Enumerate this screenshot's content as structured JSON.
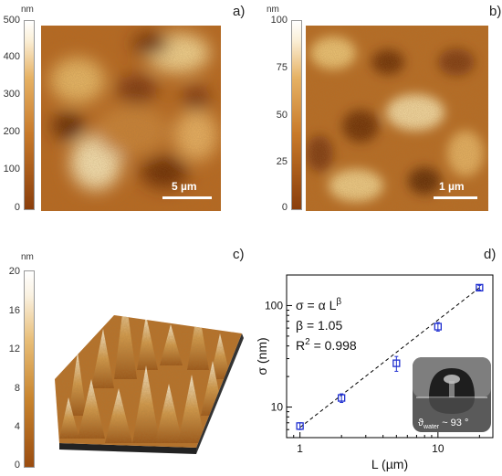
{
  "panel_a": {
    "label": "a)",
    "unit": "nm",
    "colorbar_ticks": [
      "500",
      "400",
      "300",
      "200",
      "100",
      "0"
    ],
    "scale_label": "5 µm"
  },
  "panel_b": {
    "label": "b)",
    "unit": "nm",
    "colorbar_ticks": [
      "100",
      "75",
      "50",
      "25",
      "0"
    ],
    "scale_label": "1 µm"
  },
  "panel_c": {
    "label": "c)",
    "unit": "nm",
    "colorbar_ticks": [
      "20",
      "16",
      "12",
      "8",
      "4",
      "0"
    ]
  },
  "panel_d": {
    "label": "d)",
    "equation": "σ = α L",
    "equation_exp": "β",
    "beta_line": "β = 1.05",
    "r2_line": "R",
    "r2_sup": "2",
    "r2_value": " = 0.998",
    "inset_label": "ϑ",
    "inset_sub": "water",
    "inset_value": " ~ 93 °",
    "axis_color": "#000000",
    "marker_color": "#1f2fd0"
  },
  "chart_data": {
    "type": "scatter",
    "xlabel": "L (µm)",
    "ylabel": "σ (nm)",
    "x_scale": "log",
    "y_scale": "log",
    "xlim": [
      0.8,
      25
    ],
    "ylim": [
      5,
      200
    ],
    "x_ticks": [
      1,
      10
    ],
    "x_tick_labels": [
      "1",
      "10"
    ],
    "y_ticks": [
      10,
      100
    ],
    "y_tick_labels": [
      "10",
      "100"
    ],
    "x": [
      1,
      2,
      5,
      10,
      20
    ],
    "y": [
      6.5,
      12.3,
      27,
      62,
      150
    ],
    "y_err": [
      0.5,
      1.2,
      4.5,
      6,
      8
    ],
    "fit_line": {
      "x": [
        1,
        20
      ],
      "y": [
        6.3,
        150
      ]
    }
  }
}
